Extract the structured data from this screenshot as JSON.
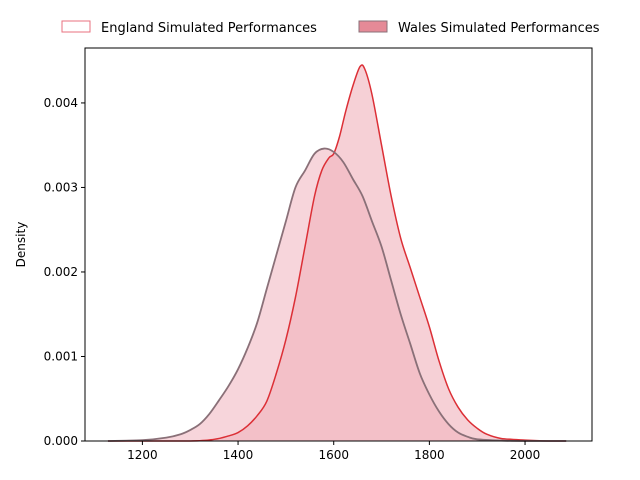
{
  "chart_data": {
    "type": "area",
    "title": "",
    "xlabel": "",
    "ylabel": "Density",
    "xlim": [
      1080,
      2140
    ],
    "ylim": [
      0,
      0.00465
    ],
    "x_ticks": [
      1200,
      1400,
      1600,
      1800,
      2000
    ],
    "x_tick_labels": [
      "1200",
      "1400",
      "1600",
      "1800",
      "2000"
    ],
    "y_ticks": [
      0,
      0.001,
      0.002,
      0.003,
      0.004
    ],
    "y_tick_labels": [
      "0.000",
      "0.001",
      "0.002",
      "0.003",
      "0.004"
    ],
    "grid": false,
    "legend": {
      "placement": "top-center-outside",
      "columns": 2
    },
    "colors": {
      "england_edge": "#e8727f",
      "england_line": "#dc2f36",
      "england_fill": "#f6d0d6",
      "wales_patch": "#e58a97",
      "wales_line": "#8a7078",
      "wales_fill": "#f0b3bd"
    },
    "series": [
      {
        "name": "England Simulated Performances",
        "style": "hollow",
        "points": [
          [
            1128,
            0
          ],
          [
            1300,
            0
          ],
          [
            1350,
            2e-05
          ],
          [
            1380,
            6e-05
          ],
          [
            1400,
            0.0001
          ],
          [
            1420,
            0.00018
          ],
          [
            1440,
            0.0003
          ],
          [
            1460,
            0.00047
          ],
          [
            1480,
            0.0008
          ],
          [
            1500,
            0.0012
          ],
          [
            1520,
            0.0017
          ],
          [
            1540,
            0.0023
          ],
          [
            1560,
            0.0029
          ],
          [
            1575,
            0.0032
          ],
          [
            1590,
            0.00335
          ],
          [
            1600,
            0.0034
          ],
          [
            1612,
            0.0036
          ],
          [
            1625,
            0.0039
          ],
          [
            1640,
            0.0042
          ],
          [
            1655,
            0.00443
          ],
          [
            1665,
            0.0044
          ],
          [
            1680,
            0.0041
          ],
          [
            1700,
            0.0035
          ],
          [
            1720,
            0.0029
          ],
          [
            1740,
            0.0024
          ],
          [
            1760,
            0.00205
          ],
          [
            1780,
            0.0017
          ],
          [
            1800,
            0.00135
          ],
          [
            1820,
            0.00095
          ],
          [
            1840,
            0.00062
          ],
          [
            1860,
            0.0004
          ],
          [
            1880,
            0.00025
          ],
          [
            1900,
            0.00015
          ],
          [
            1920,
            8e-05
          ],
          [
            1950,
            3e-05
          ],
          [
            2000,
            1e-05
          ],
          [
            2050,
            0
          ],
          [
            2086,
            0
          ]
        ]
      },
      {
        "name": "Wales Simulated Performances",
        "style": "filled",
        "points": [
          [
            1128,
            0
          ],
          [
            1200,
            1e-05
          ],
          [
            1250,
            4e-05
          ],
          [
            1280,
            8e-05
          ],
          [
            1300,
            0.00013
          ],
          [
            1320,
            0.0002
          ],
          [
            1340,
            0.00032
          ],
          [
            1360,
            0.00048
          ],
          [
            1380,
            0.00065
          ],
          [
            1400,
            0.00085
          ],
          [
            1420,
            0.0011
          ],
          [
            1440,
            0.0014
          ],
          [
            1460,
            0.0018
          ],
          [
            1480,
            0.0022
          ],
          [
            1500,
            0.0026
          ],
          [
            1520,
            0.003
          ],
          [
            1540,
            0.0032
          ],
          [
            1560,
            0.0034
          ],
          [
            1580,
            0.00346
          ],
          [
            1600,
            0.00342
          ],
          [
            1620,
            0.0033
          ],
          [
            1640,
            0.0031
          ],
          [
            1660,
            0.0029
          ],
          [
            1680,
            0.0026
          ],
          [
            1700,
            0.0023
          ],
          [
            1720,
            0.0019
          ],
          [
            1740,
            0.0015
          ],
          [
            1760,
            0.00115
          ],
          [
            1780,
            0.0008
          ],
          [
            1800,
            0.00055
          ],
          [
            1820,
            0.00035
          ],
          [
            1840,
            0.0002
          ],
          [
            1860,
            0.0001
          ],
          [
            1880,
            5e-05
          ],
          [
            1900,
            2e-05
          ],
          [
            1950,
            5e-06
          ],
          [
            2000,
            0
          ],
          [
            2086,
            0
          ]
        ]
      }
    ]
  }
}
